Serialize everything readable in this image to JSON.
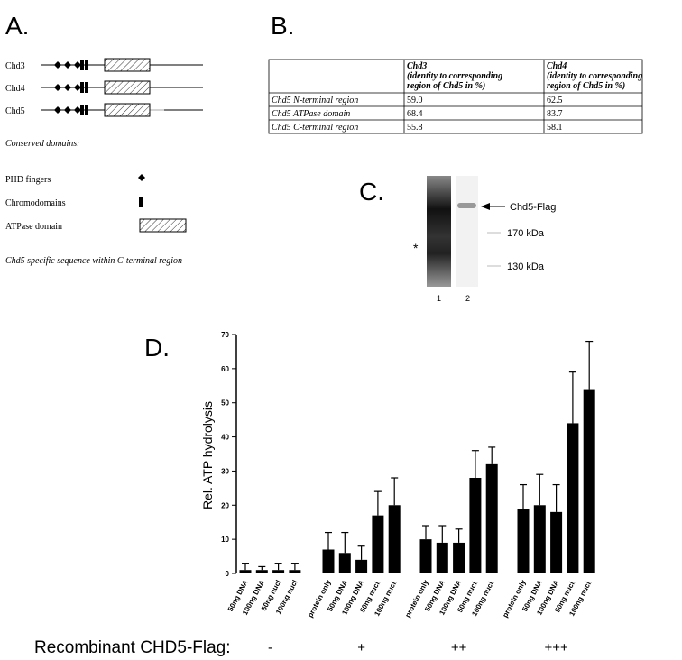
{
  "panel_a": {
    "label": "A.",
    "rows": [
      "Chd3",
      "Chd4",
      "Chd5"
    ],
    "legend_title": "Conserved domains:",
    "legend": [
      "PHD fingers",
      "Chromodomains",
      "ATPase domain"
    ],
    "note": "Chd5 specific sequence within C-terminal region"
  },
  "panel_b": {
    "label": "B.",
    "header": [
      [],
      [
        "Chd3",
        "(identity to corresponding",
        "region of Chd5  in %)"
      ],
      [
        "Chd4",
        "(identity to corresponding",
        "region of Chd5  in %)"
      ]
    ],
    "rows": [
      [
        "Chd5 N-terminal region",
        "59.0",
        "62.5"
      ],
      [
        "Chd5 ATPase domain",
        "68.4",
        "83.7"
      ],
      [
        "Chd5 C-terminal region",
        "55.8",
        "58.1"
      ]
    ]
  },
  "panel_c": {
    "label": "C.",
    "band_label": "Chd5-Flag",
    "markers": [
      "170 kDa",
      "130 kDa"
    ],
    "lanes": [
      "1",
      "2"
    ],
    "asterisk": "*"
  },
  "chart_data": {
    "type": "bar",
    "label": "D.",
    "y_label": "Rel. ATP hydrolysis",
    "group_title": "Recombinant CHD5-Flag:",
    "color": "#000000",
    "ylim": [
      0,
      70
    ],
    "yticks": [
      0,
      10,
      20,
      30,
      40,
      50,
      60,
      70
    ],
    "groups": [
      {
        "label": "-",
        "categories": [
          "50ng DNA",
          "100ng DNA",
          "50ng nucl",
          "100ng nucl"
        ],
        "values": [
          1,
          1,
          1,
          1
        ],
        "errors": [
          2,
          1,
          2,
          2
        ]
      },
      {
        "label": "+",
        "categories": [
          "protein only",
          "50ng DNA",
          "100ng DNA",
          "50ng nucl.",
          "100ng nucl."
        ],
        "values": [
          7,
          6,
          4,
          17,
          20
        ],
        "errors": [
          5,
          6,
          4,
          7,
          8
        ]
      },
      {
        "label": "++",
        "categories": [
          "protein only",
          "50ng DNA",
          "100ng DNA",
          "50ng nucl.",
          "100ng nucl."
        ],
        "values": [
          10,
          9,
          9,
          28,
          32
        ],
        "errors": [
          4,
          5,
          4,
          8,
          5
        ]
      },
      {
        "label": "+++",
        "categories": [
          "protein only",
          "50ng DNA",
          "100ng DNA",
          "50ng nucl.",
          "100ng nucl."
        ],
        "values": [
          19,
          20,
          18,
          44,
          54
        ],
        "errors": [
          7,
          9,
          8,
          15,
          14
        ]
      }
    ]
  }
}
